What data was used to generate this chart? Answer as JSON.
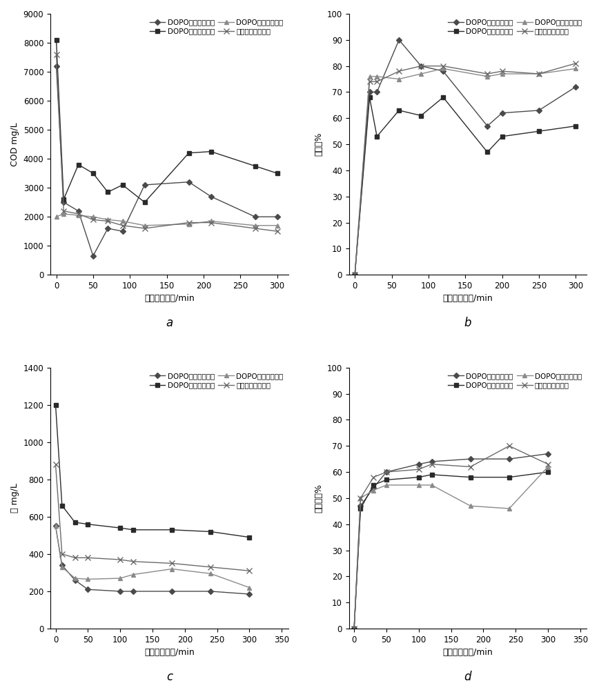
{
  "legend_labels": [
    "DOPO第一次离心液",
    "DOPO第二次离心液",
    "DOPO第三次离心液",
    "四种离心液混合液"
  ],
  "subplot_labels": [
    "a",
    "b",
    "c",
    "d"
  ],
  "plot_a": {
    "xlabel": "静态吸附时间/min",
    "ylabel": "COD mg/L",
    "ylim": [
      0,
      9000
    ],
    "yticks": [
      0,
      1000,
      2000,
      3000,
      4000,
      5000,
      6000,
      7000,
      8000,
      9000
    ],
    "xlim": [
      -8,
      315
    ],
    "xticks": [
      0,
      50,
      100,
      150,
      200,
      250,
      300
    ],
    "series": [
      {
        "x": [
          0,
          10,
          30,
          50,
          70,
          90,
          120,
          180,
          210,
          270,
          300
        ],
        "y": [
          7200,
          2500,
          2200,
          650,
          1600,
          1500,
          3100,
          3200,
          2700,
          2000,
          2000
        ]
      },
      {
        "x": [
          0,
          10,
          30,
          50,
          70,
          90,
          120,
          180,
          210,
          270,
          300
        ],
        "y": [
          8100,
          2600,
          3800,
          3500,
          2850,
          3100,
          2500,
          4200,
          4250,
          3750,
          3500
        ]
      },
      {
        "x": [
          0,
          10,
          30,
          50,
          70,
          90,
          120,
          180,
          210,
          270,
          300
        ],
        "y": [
          2000,
          2100,
          2050,
          2000,
          1900,
          1850,
          1700,
          1750,
          1850,
          1700,
          1700
        ]
      },
      {
        "x": [
          0,
          10,
          30,
          50,
          70,
          90,
          120,
          180,
          210,
          270,
          300
        ],
        "y": [
          7600,
          2200,
          2100,
          1900,
          1850,
          1700,
          1600,
          1800,
          1800,
          1600,
          1500
        ]
      }
    ]
  },
  "plot_b": {
    "xlabel": "静态吸附时间/min",
    "ylabel": "去除率%",
    "ylim": [
      0,
      100
    ],
    "yticks": [
      0,
      10,
      20,
      30,
      40,
      50,
      60,
      70,
      80,
      90,
      100
    ],
    "xlim": [
      -8,
      315
    ],
    "xticks": [
      0,
      50,
      100,
      150,
      200,
      250,
      300
    ],
    "series": [
      {
        "x": [
          0,
          20,
          30,
          60,
          90,
          120,
          180,
          200,
          250,
          300
        ],
        "y": [
          0,
          70,
          70,
          90,
          80,
          78,
          57,
          62,
          63,
          72
        ]
      },
      {
        "x": [
          0,
          20,
          30,
          60,
          90,
          120,
          180,
          200,
          250,
          300
        ],
        "y": [
          0,
          68,
          53,
          63,
          61,
          68,
          47,
          53,
          55,
          57
        ]
      },
      {
        "x": [
          0,
          20,
          30,
          60,
          90,
          120,
          180,
          200,
          250,
          300
        ],
        "y": [
          0,
          76,
          76,
          75,
          77,
          79,
          76,
          77,
          77,
          79
        ]
      },
      {
        "x": [
          0,
          20,
          30,
          60,
          90,
          120,
          180,
          200,
          250,
          300
        ],
        "y": [
          0,
          74,
          74,
          78,
          80,
          80,
          77,
          78,
          77,
          81
        ]
      }
    ]
  },
  "plot_c": {
    "xlabel": "静态吸附时间/min",
    "ylabel": "酟 mg/L",
    "ylim": [
      0,
      1400
    ],
    "yticks": [
      0,
      200,
      400,
      600,
      800,
      1000,
      1200,
      1400
    ],
    "xlim": [
      -8,
      360
    ],
    "xticks": [
      0,
      50,
      100,
      150,
      200,
      250,
      300,
      350
    ],
    "series": [
      {
        "x": [
          0,
          10,
          30,
          50,
          100,
          120,
          180,
          240,
          300
        ],
        "y": [
          550,
          340,
          260,
          210,
          200,
          200,
          200,
          200,
          185
        ]
      },
      {
        "x": [
          0,
          10,
          30,
          50,
          100,
          120,
          180,
          240,
          300
        ],
        "y": [
          1200,
          660,
          570,
          560,
          540,
          530,
          530,
          520,
          490
        ]
      },
      {
        "x": [
          0,
          10,
          30,
          50,
          100,
          120,
          180,
          240,
          300
        ],
        "y": [
          550,
          330,
          270,
          265,
          270,
          290,
          320,
          295,
          220
        ]
      },
      {
        "x": [
          0,
          10,
          30,
          50,
          100,
          120,
          180,
          240,
          300
        ],
        "y": [
          880,
          400,
          380,
          380,
          370,
          360,
          350,
          330,
          310
        ]
      }
    ]
  },
  "plot_d": {
    "xlabel": "静态吸附时间/min",
    "ylabel": "酟去除率%",
    "ylim": [
      0,
      100
    ],
    "yticks": [
      0,
      10,
      20,
      30,
      40,
      50,
      60,
      70,
      80,
      90,
      100
    ],
    "xlim": [
      -8,
      360
    ],
    "xticks": [
      0,
      50,
      100,
      150,
      200,
      250,
      300,
      350
    ],
    "series": [
      {
        "x": [
          0,
          10,
          30,
          50,
          100,
          120,
          180,
          240,
          300
        ],
        "y": [
          0,
          47,
          54,
          60,
          63,
          64,
          65,
          65,
          67
        ]
      },
      {
        "x": [
          0,
          10,
          30,
          50,
          100,
          120,
          180,
          240,
          300
        ],
        "y": [
          0,
          46,
          55,
          57,
          58,
          59,
          58,
          58,
          60
        ]
      },
      {
        "x": [
          0,
          10,
          30,
          50,
          100,
          120,
          180,
          240,
          300
        ],
        "y": [
          0,
          50,
          53,
          55,
          55,
          55,
          47,
          46,
          62
        ]
      },
      {
        "x": [
          0,
          10,
          30,
          50,
          100,
          120,
          180,
          240,
          300
        ],
        "y": [
          0,
          50,
          58,
          60,
          61,
          63,
          62,
          70,
          63
        ]
      }
    ]
  }
}
